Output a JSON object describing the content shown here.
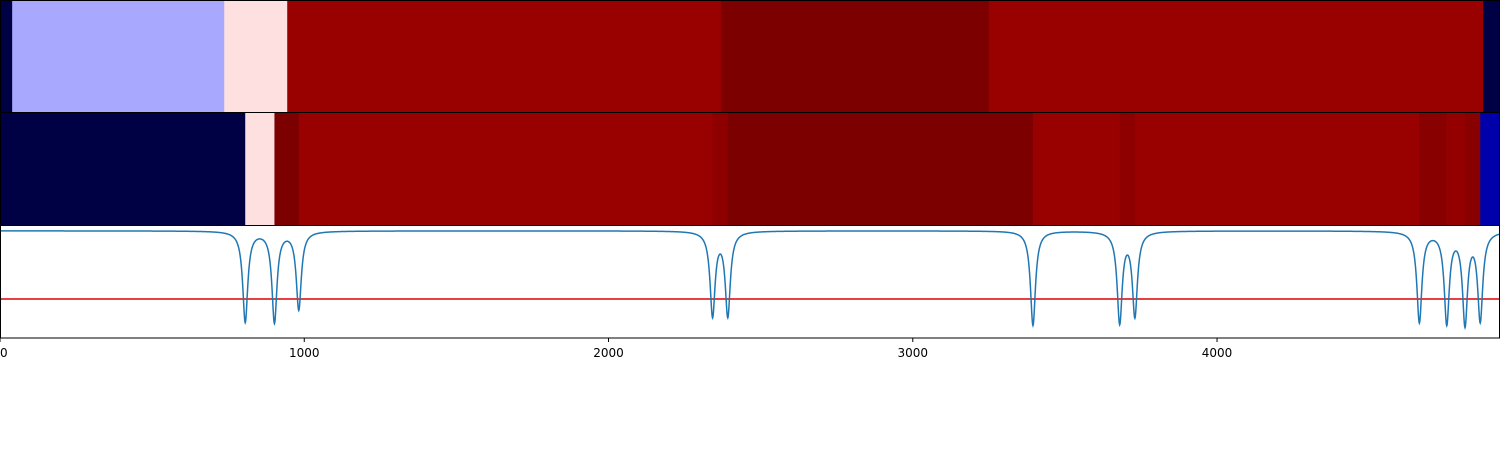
{
  "chart_data": {
    "type": "heatmap",
    "title": "",
    "xlabel": "",
    "ylabel": "",
    "xlim": [
      0,
      4930
    ],
    "x_ticks": [
      {
        "value": 0,
        "label": "0"
      },
      {
        "value": 1000,
        "label": "1000"
      },
      {
        "value": 2000,
        "label": "2000"
      },
      {
        "value": 3000,
        "label": "3000"
      },
      {
        "value": 4000,
        "label": "4000"
      }
    ],
    "segment_rows": [
      {
        "segments": [
          {
            "start": 0,
            "end": 40,
            "color": "#000044"
          },
          {
            "start": 40,
            "end": 737,
            "color": "#a8a8ff"
          },
          {
            "start": 737,
            "end": 944,
            "color": "#ffe0e0"
          },
          {
            "start": 944,
            "end": 2370,
            "color": "#990000"
          },
          {
            "start": 2370,
            "end": 3250,
            "color": "#7d0000"
          },
          {
            "start": 3250,
            "end": 4875,
            "color": "#990000"
          },
          {
            "start": 4875,
            "end": 4930,
            "color": "#000044"
          }
        ]
      },
      {
        "segments": [
          {
            "start": 0,
            "end": 806,
            "color": "#000044"
          },
          {
            "start": 806,
            "end": 902,
            "color": "#ffe0e0"
          },
          {
            "start": 902,
            "end": 982,
            "color": "#7d0000"
          },
          {
            "start": 982,
            "end": 2342,
            "color": "#990000"
          },
          {
            "start": 2342,
            "end": 2392,
            "color": "#8e0000"
          },
          {
            "start": 2392,
            "end": 3395,
            "color": "#7d0000"
          },
          {
            "start": 3395,
            "end": 3680,
            "color": "#990000"
          },
          {
            "start": 3680,
            "end": 3730,
            "color": "#8e0000"
          },
          {
            "start": 3730,
            "end": 4665,
            "color": "#990000"
          },
          {
            "start": 4665,
            "end": 4755,
            "color": "#880000"
          },
          {
            "start": 4755,
            "end": 4815,
            "color": "#940000"
          },
          {
            "start": 4815,
            "end": 4865,
            "color": "#880000"
          },
          {
            "start": 4865,
            "end": 4930,
            "color": "#0000aa"
          }
        ]
      }
    ],
    "line_panel": {
      "ylim": [
        -1.1,
        0.05
      ],
      "threshold": {
        "value": -0.7,
        "color": "#e00000"
      },
      "series": [
        {
          "color": "#1f77b4",
          "baseline": 0,
          "dips": [
            {
              "x": 806,
              "depth": -0.93
            },
            {
              "x": 902,
              "depth": -0.93
            },
            {
              "x": 982,
              "depth": -0.8
            },
            {
              "x": 2342,
              "depth": -0.86
            },
            {
              "x": 2392,
              "depth": -0.86
            },
            {
              "x": 3395,
              "depth": -0.97
            },
            {
              "x": 3680,
              "depth": -0.93
            },
            {
              "x": 3730,
              "depth": -0.86
            },
            {
              "x": 4665,
              "depth": -0.93
            },
            {
              "x": 4755,
              "depth": -0.93
            },
            {
              "x": 4815,
              "depth": -0.93
            },
            {
              "x": 4865,
              "depth": -0.9
            }
          ]
        }
      ]
    }
  }
}
